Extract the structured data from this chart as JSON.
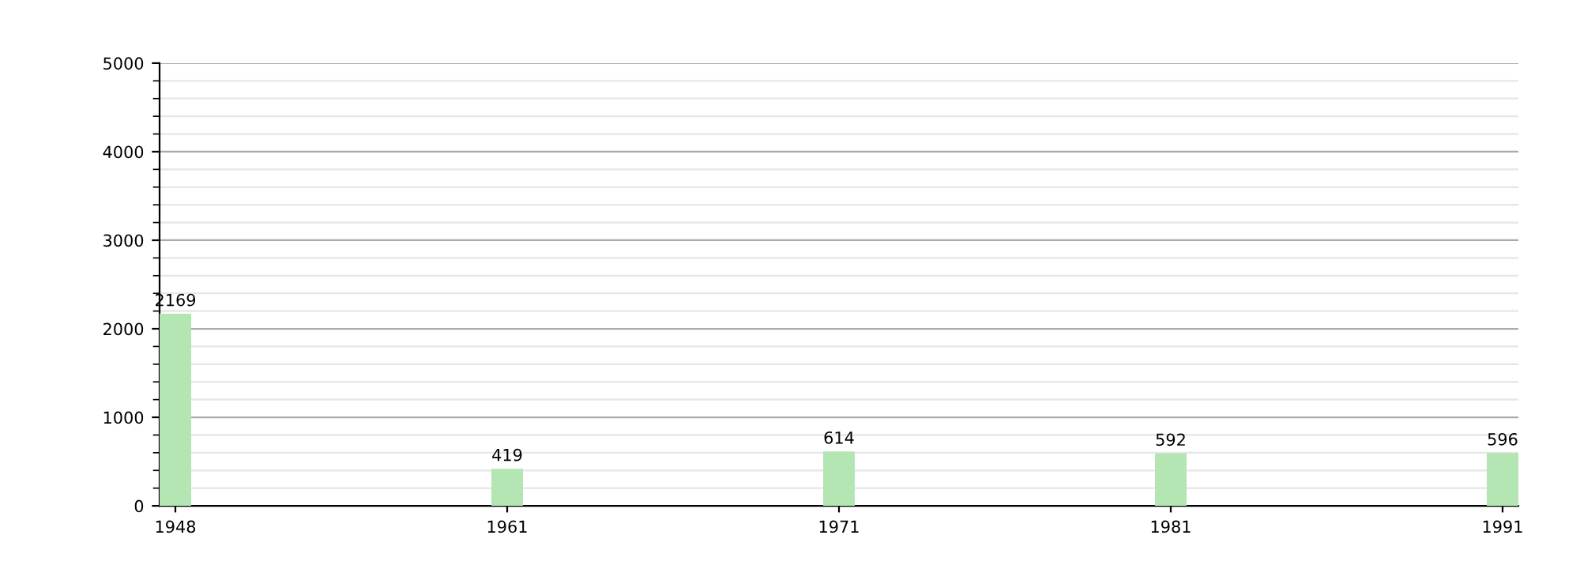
{
  "chart_data": {
    "type": "bar",
    "categories": [
      "1948",
      "1961",
      "1971",
      "1981",
      "1991"
    ],
    "values": [
      2169,
      419,
      614,
      592,
      596
    ],
    "color": "#b3e6b3",
    "ylim": [
      0,
      5000
    ],
    "yticks": [
      0,
      1000,
      2000,
      3000,
      4000,
      5000
    ],
    "grid": "y",
    "data_labels": true
  }
}
